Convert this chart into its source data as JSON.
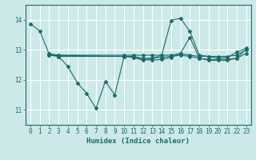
{
  "title": "",
  "xlabel": "Humidex (Indice chaleur)",
  "background_color": "#cce8e8",
  "grid_color": "#ffffff",
  "line_color": "#1a6b6b",
  "xlim": [
    -0.5,
    23.5
  ],
  "ylim": [
    10.5,
    14.5
  ],
  "yticks": [
    11,
    12,
    13,
    14
  ],
  "xticks": [
    0,
    1,
    2,
    3,
    4,
    5,
    6,
    7,
    8,
    9,
    10,
    11,
    12,
    13,
    14,
    15,
    16,
    17,
    18,
    19,
    20,
    21,
    22,
    23
  ],
  "lines": [
    {
      "x": [
        0,
        1,
        2,
        3,
        4,
        5,
        6,
        7,
        8,
        9,
        10,
        11,
        12,
        13,
        14,
        15,
        16,
        17,
        18,
        19,
        20,
        21,
        22,
        23
      ],
      "y": [
        13.87,
        13.63,
        12.87,
        12.78,
        12.45,
        11.9,
        11.55,
        11.05,
        11.95,
        11.5,
        12.78,
        12.75,
        12.65,
        12.72,
        12.82,
        13.98,
        14.05,
        13.62,
        12.82,
        12.78,
        12.72,
        12.75,
        12.92,
        13.05
      ]
    },
    {
      "x": [
        2,
        3,
        10,
        11,
        12,
        13,
        14,
        15,
        16,
        17,
        18,
        19,
        20,
        21,
        22,
        23
      ],
      "y": [
        12.87,
        12.82,
        12.82,
        12.82,
        12.82,
        12.82,
        12.82,
        12.82,
        12.88,
        12.82,
        12.78,
        12.78,
        12.78,
        12.78,
        12.82,
        13.0
      ]
    },
    {
      "x": [
        2,
        3,
        10,
        11,
        12,
        13,
        14,
        15,
        16,
        17,
        18,
        19,
        20,
        21,
        22,
        23
      ],
      "y": [
        12.82,
        12.78,
        12.78,
        12.78,
        12.72,
        12.72,
        12.75,
        12.78,
        12.82,
        12.78,
        12.72,
        12.68,
        12.68,
        12.68,
        12.72,
        12.88
      ]
    },
    {
      "x": [
        2,
        10,
        11,
        12,
        13,
        14,
        15,
        16,
        17,
        18,
        19,
        20,
        21,
        22,
        23
      ],
      "y": [
        12.82,
        12.78,
        12.75,
        12.68,
        12.65,
        12.68,
        12.75,
        12.88,
        13.42,
        12.72,
        12.65,
        12.65,
        12.65,
        12.72,
        13.02
      ]
    }
  ]
}
